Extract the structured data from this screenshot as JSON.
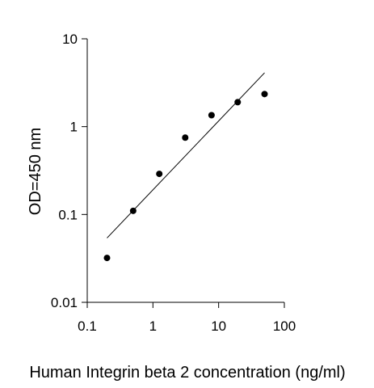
{
  "chart_data": {
    "type": "scatter",
    "title": "",
    "xlabel": "Human Integrin beta 2 concentration (ng/ml)",
    "ylabel": "OD=450 nm",
    "x_scale": "log",
    "y_scale": "log",
    "xlim": [
      0.1,
      100
    ],
    "ylim": [
      0.01,
      10
    ],
    "x_ticks": [
      "0.1",
      "1",
      "10",
      "100"
    ],
    "y_ticks": [
      "0.01",
      "0.1",
      "1",
      "10"
    ],
    "grid": false,
    "legend": "none",
    "series": [
      {
        "points": [
          {
            "x": 0.2,
            "y": 0.032
          },
          {
            "x": 0.5,
            "y": 0.11
          },
          {
            "x": 1.25,
            "y": 0.29
          },
          {
            "x": 3.1,
            "y": 0.75
          },
          {
            "x": 7.8,
            "y": 1.35
          },
          {
            "x": 19.5,
            "y": 1.9
          },
          {
            "x": 50,
            "y": 2.35
          }
        ]
      }
    ],
    "trendline": {
      "type": "power",
      "points": [
        {
          "x": 0.2,
          "y": 0.054
        },
        {
          "x": 50,
          "y": 4.1
        }
      ]
    },
    "colors": {
      "marker": "#000000",
      "line": "#000000",
      "axis": "#000000"
    }
  }
}
